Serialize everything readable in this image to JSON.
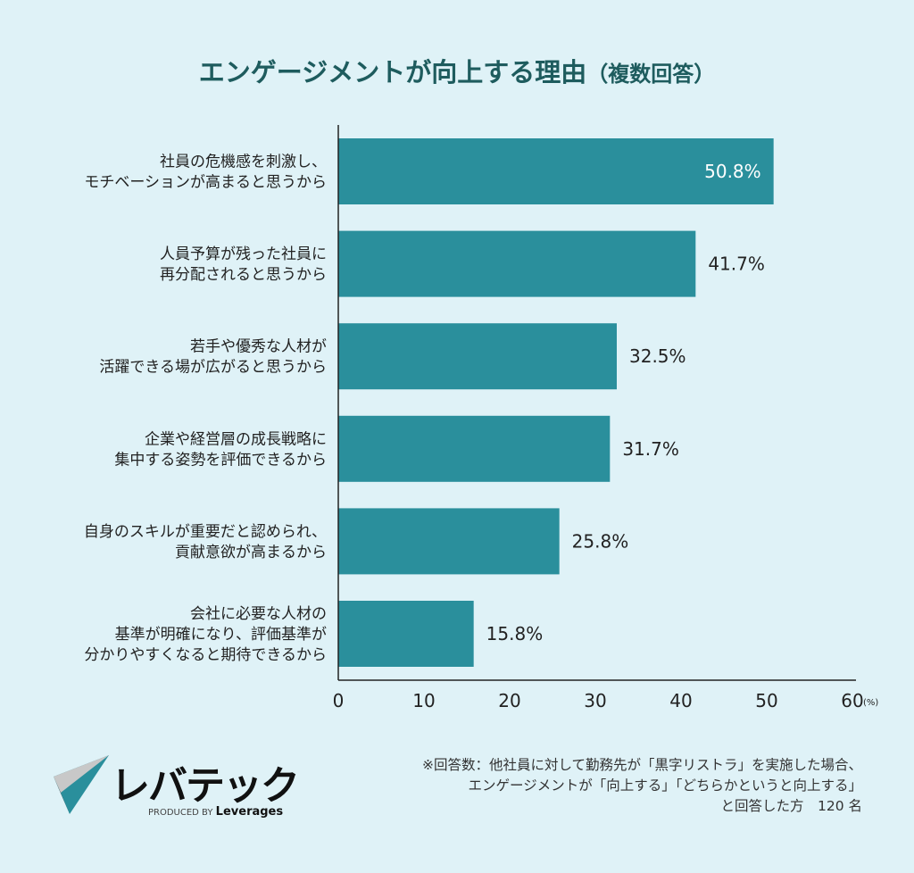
{
  "colors": {
    "background": "#dff2f7",
    "bar": "#2a8f9c",
    "title": "#1e5c5e"
  },
  "title": "エンゲージメントが向上する理由",
  "title_suffix": "（複数回答）",
  "chart_data": {
    "type": "bar",
    "orientation": "horizontal",
    "categories": [
      [
        "社員の危機感を刺激し、",
        "モチベーションが高まると思うから"
      ],
      [
        "人員予算が残った社員に",
        "再分配されると思うから"
      ],
      [
        "若手や優秀な人材が",
        "活躍できる場が広がると思うから"
      ],
      [
        "企業や経営層の成長戦略に",
        "集中する姿勢を評価できるから"
      ],
      [
        "自身のスキルが重要だと認められ、",
        "貢献意欲が高まるから"
      ],
      [
        "会社に必要な人材の",
        "基準が明確になり、評価基準が",
        "分かりやすくなると期待できるから"
      ]
    ],
    "values": [
      50.8,
      41.7,
      32.5,
      31.7,
      25.8,
      15.8
    ],
    "data_labels": [
      "50.8%",
      "41.7%",
      "32.5%",
      "31.7%",
      "25.8%",
      "15.8%"
    ],
    "xlim": [
      0,
      60
    ],
    "xticks": [
      "0",
      "10",
      "20",
      "30",
      "40",
      "50",
      "60"
    ],
    "xunit": "(%)",
    "grid": false
  },
  "note": [
    "※回答数：他社員に対して勤務先が「黒字リストラ」を実施した場合、",
    "エンゲージメントが「向上する」「どちらかというと向上する」",
    "と回答した方　120 名"
  ],
  "logo": {
    "name": "レバテック",
    "produced_by": "PRODUCED BY",
    "brand": "Leverages"
  }
}
